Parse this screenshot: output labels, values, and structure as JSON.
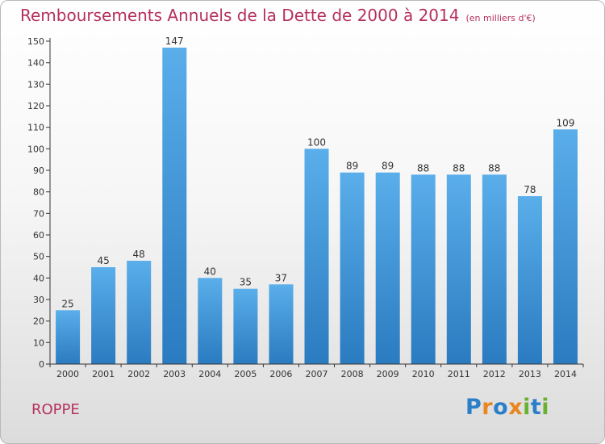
{
  "header": {
    "title": "Remboursements Annuels de la Dette de 2000 à 2014",
    "subtitle": "(en milliers d'€)"
  },
  "footer": {
    "commune": "ROPPE",
    "logo_text": "Proxiti"
  },
  "colors": {
    "title": "#b5305c",
    "bar_top": "#5aaeea",
    "bar_bottom": "#2a7bc0",
    "axis": "#333333",
    "logo_letters": [
      "#2a7fc8",
      "#e8861f",
      "#2a7fc8",
      "#e8861f",
      "#69b231",
      "#2a7fc8",
      "#69b231"
    ]
  },
  "chart_data": {
    "type": "bar",
    "title": "Remboursements Annuels de la Dette de 2000 à 2014",
    "subtitle": "(en milliers d'€)",
    "xlabel": "",
    "ylabel": "",
    "categories": [
      "2000",
      "2001",
      "2002",
      "2003",
      "2004",
      "2005",
      "2006",
      "2007",
      "2008",
      "2009",
      "2010",
      "2011",
      "2012",
      "2013",
      "2014"
    ],
    "values": [
      25,
      45,
      48,
      147,
      40,
      35,
      37,
      100,
      89,
      89,
      88,
      88,
      88,
      78,
      109
    ],
    "ylim": [
      0,
      150
    ],
    "yticks": [
      0,
      10,
      20,
      30,
      40,
      50,
      60,
      70,
      80,
      90,
      100,
      110,
      120,
      130,
      140,
      150
    ],
    "grid": false,
    "data_labels": true
  }
}
